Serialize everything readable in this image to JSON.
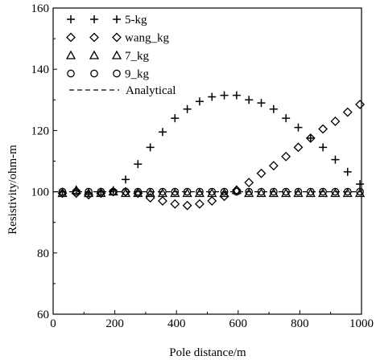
{
  "chart_data": {
    "type": "scatter",
    "xlabel": "Pole distance/m",
    "ylabel": "Resistivity/ohm-m",
    "xlim": [
      0,
      1000
    ],
    "ylim": [
      60,
      160
    ],
    "xticks": [
      0,
      200,
      400,
      600,
      800,
      1000
    ],
    "yticks": [
      60,
      80,
      100,
      120,
      140,
      160
    ],
    "grid": false,
    "legend_position": "top-left",
    "series": [
      {
        "name": "5-kg",
        "marker": "plus",
        "x": [
          30,
          75,
          115,
          155,
          195,
          235,
          275,
          315,
          355,
          395,
          435,
          475,
          515,
          555,
          595,
          635,
          675,
          715,
          755,
          795,
          835,
          875,
          915,
          955,
          995
        ],
        "y": [
          100,
          100.5,
          99.5,
          100,
          100.5,
          104,
          109,
          114.5,
          119.5,
          124,
          127,
          129.5,
          131,
          131.5,
          131.5,
          130,
          129,
          127,
          124,
          121,
          117.5,
          114.5,
          110.5,
          106.5,
          102.5
        ]
      },
      {
        "name": "wang_kg",
        "marker": "diamond",
        "x": [
          30,
          75,
          115,
          155,
          195,
          235,
          275,
          315,
          355,
          395,
          435,
          475,
          515,
          555,
          595,
          635,
          675,
          715,
          755,
          795,
          835,
          875,
          915,
          955,
          995
        ],
        "y": [
          99.5,
          99.5,
          99,
          99.5,
          100,
          100,
          99.5,
          98,
          97,
          96,
          95.5,
          96,
          97,
          98.5,
          100.5,
          103,
          106,
          108.5,
          111.5,
          114.5,
          117.5,
          120.5,
          123,
          126,
          128.5
        ]
      },
      {
        "name": "7_kg",
        "marker": "triangle",
        "x": [
          30,
          75,
          115,
          155,
          195,
          235,
          275,
          315,
          355,
          395,
          435,
          475,
          515,
          555,
          595,
          635,
          675,
          715,
          755,
          795,
          835,
          875,
          915,
          955,
          995
        ],
        "y": [
          99.5,
          100.5,
          99.5,
          99.5,
          100,
          99.5,
          99.5,
          99.5,
          99.5,
          99.5,
          99.5,
          99.5,
          99.5,
          99.5,
          100.5,
          99.5,
          99.5,
          99.5,
          99.5,
          99.5,
          99.5,
          99.5,
          99.5,
          99.5,
          99.5
        ]
      },
      {
        "name": "9_kg",
        "marker": "circle",
        "x": [
          30,
          75,
          115,
          155,
          195,
          235,
          275,
          315,
          355,
          395,
          435,
          475,
          515,
          555,
          595,
          635,
          675,
          715,
          755,
          795,
          835,
          875,
          915,
          955,
          995
        ],
        "y": [
          100,
          100,
          100,
          100,
          100,
          100,
          100,
          100,
          100,
          100,
          100,
          100,
          100,
          100,
          100,
          100,
          100,
          100,
          100,
          100,
          100,
          100,
          100,
          100,
          100
        ]
      },
      {
        "name": "Analytical",
        "marker": "dashed-line",
        "x": [
          0,
          1000
        ],
        "y": [
          100,
          100
        ]
      }
    ]
  }
}
